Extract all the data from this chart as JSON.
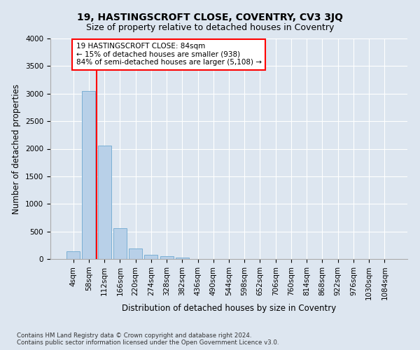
{
  "title": "19, HASTINGSCROFT CLOSE, COVENTRY, CV3 3JQ",
  "subtitle": "Size of property relative to detached houses in Coventry",
  "xlabel": "Distribution of detached houses by size in Coventry",
  "ylabel": "Number of detached properties",
  "bar_labels": [
    "4sqm",
    "58sqm",
    "112sqm",
    "166sqm",
    "220sqm",
    "274sqm",
    "328sqm",
    "382sqm",
    "436sqm",
    "490sqm",
    "544sqm",
    "598sqm",
    "652sqm",
    "706sqm",
    "760sqm",
    "814sqm",
    "868sqm",
    "922sqm",
    "976sqm",
    "1030sqm",
    "1084sqm"
  ],
  "bar_values": [
    145,
    3050,
    2060,
    555,
    195,
    75,
    50,
    30,
    0,
    0,
    0,
    0,
    0,
    0,
    0,
    0,
    0,
    0,
    0,
    0,
    0
  ],
  "bar_color": "#b8d0e8",
  "bar_edge_color": "#7aafd4",
  "ylim": [
    0,
    4000
  ],
  "yticks": [
    0,
    500,
    1000,
    1500,
    2000,
    2500,
    3000,
    3500,
    4000
  ],
  "property_label": "19 HASTINGSCROFT CLOSE: 84sqm",
  "annotation_line1": "← 15% of detached houses are smaller (938)",
  "annotation_line2": "84% of semi-detached houses are larger (5,108) →",
  "vline_x": 1.48,
  "footer_line1": "Contains HM Land Registry data © Crown copyright and database right 2024.",
  "footer_line2": "Contains public sector information licensed under the Open Government Licence v3.0.",
  "background_color": "#dde6f0",
  "grid_color": "#ffffff",
  "title_fontsize": 10,
  "subtitle_fontsize": 9,
  "axis_label_fontsize": 8.5,
  "tick_fontsize": 7.5
}
